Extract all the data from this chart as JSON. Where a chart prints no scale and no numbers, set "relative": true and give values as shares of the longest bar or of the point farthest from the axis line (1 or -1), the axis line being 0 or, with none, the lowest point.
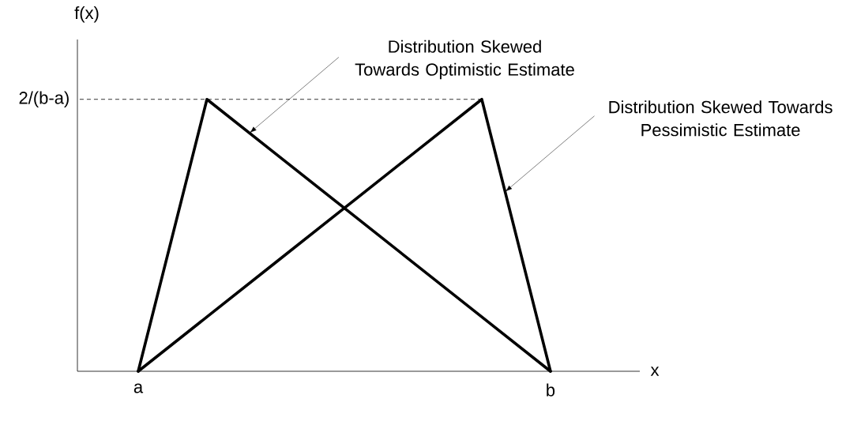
{
  "chart_data": {
    "type": "line",
    "relative": true,
    "xlabel": "x",
    "ylabel": "f(x)",
    "categories": [
      "a",
      null,
      null,
      null,
      null,
      null,
      "b"
    ],
    "series": [
      {
        "values": [
          0,
          1,
          0.8,
          0.6,
          0.4,
          0.2,
          0
        ],
        "color": "#000000"
      },
      {
        "values": [
          0,
          0.2,
          0.4,
          0.6,
          0.8,
          1,
          0
        ],
        "color": "#000000"
      }
    ],
    "ref_lines": [
      {
        "axis": "y",
        "value": 1,
        "label": "2/(b-a)",
        "line_style": "dashed",
        "color": "#000000"
      }
    ],
    "annotations": [
      "Distribution Skewed Towards Optimistic Estimate",
      "Distribution Skewed Towards Pessimistic Estimate"
    ]
  }
}
